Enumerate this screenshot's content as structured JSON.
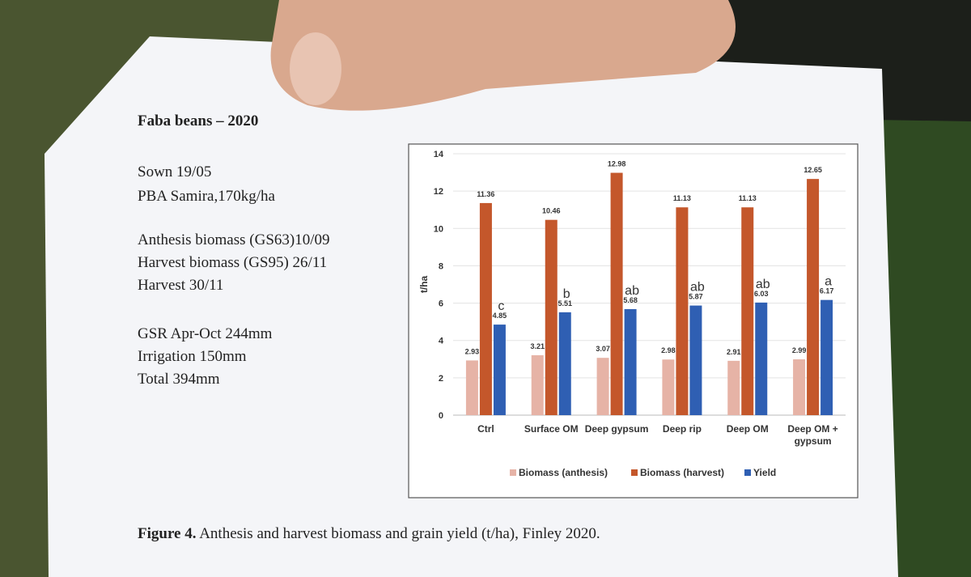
{
  "document": {
    "title": "Faba beans – 2020",
    "lines": [
      "Sown 19/05",
      "PBA Samira,170kg/ha",
      "Anthesis biomass (GS63)10/09",
      "Harvest biomass (GS95) 26/11",
      "Harvest 30/11",
      "GSR Apr-Oct 244mm",
      "Irrigation 150mm",
      "Total 394mm"
    ],
    "caption_label": "Figure 4.",
    "caption": "Anthesis and harvest biomass and grain yield (t/ha), Finley 2020."
  },
  "chart_data": {
    "type": "bar",
    "y_label": "t/ha",
    "categories": [
      "Ctrl",
      "Surface OM",
      "Deep gypsum",
      "Deep rip",
      "Deep OM",
      "Deep OM + gypsum"
    ],
    "series": [
      {
        "name": "Biomass (anthesis)",
        "color": "#e6b3a6",
        "values": [
          2.93,
          3.21,
          3.07,
          2.98,
          2.91,
          2.99
        ]
      },
      {
        "name": "Biomass (harvest)",
        "color": "#c4572b",
        "values": [
          11.36,
          10.46,
          12.98,
          11.13,
          11.13,
          12.65
        ]
      },
      {
        "name": "Yield",
        "color": "#2f5fb3",
        "values": [
          4.85,
          5.51,
          5.68,
          5.87,
          6.03,
          6.17
        ]
      }
    ],
    "annotations": [
      "c",
      "b",
      "ab",
      "ab",
      "ab",
      "a"
    ],
    "ylim": [
      0,
      14
    ],
    "yticks": [
      0,
      2,
      4,
      6,
      8,
      10,
      12,
      14
    ],
    "grid": true,
    "legend": "bottom"
  }
}
